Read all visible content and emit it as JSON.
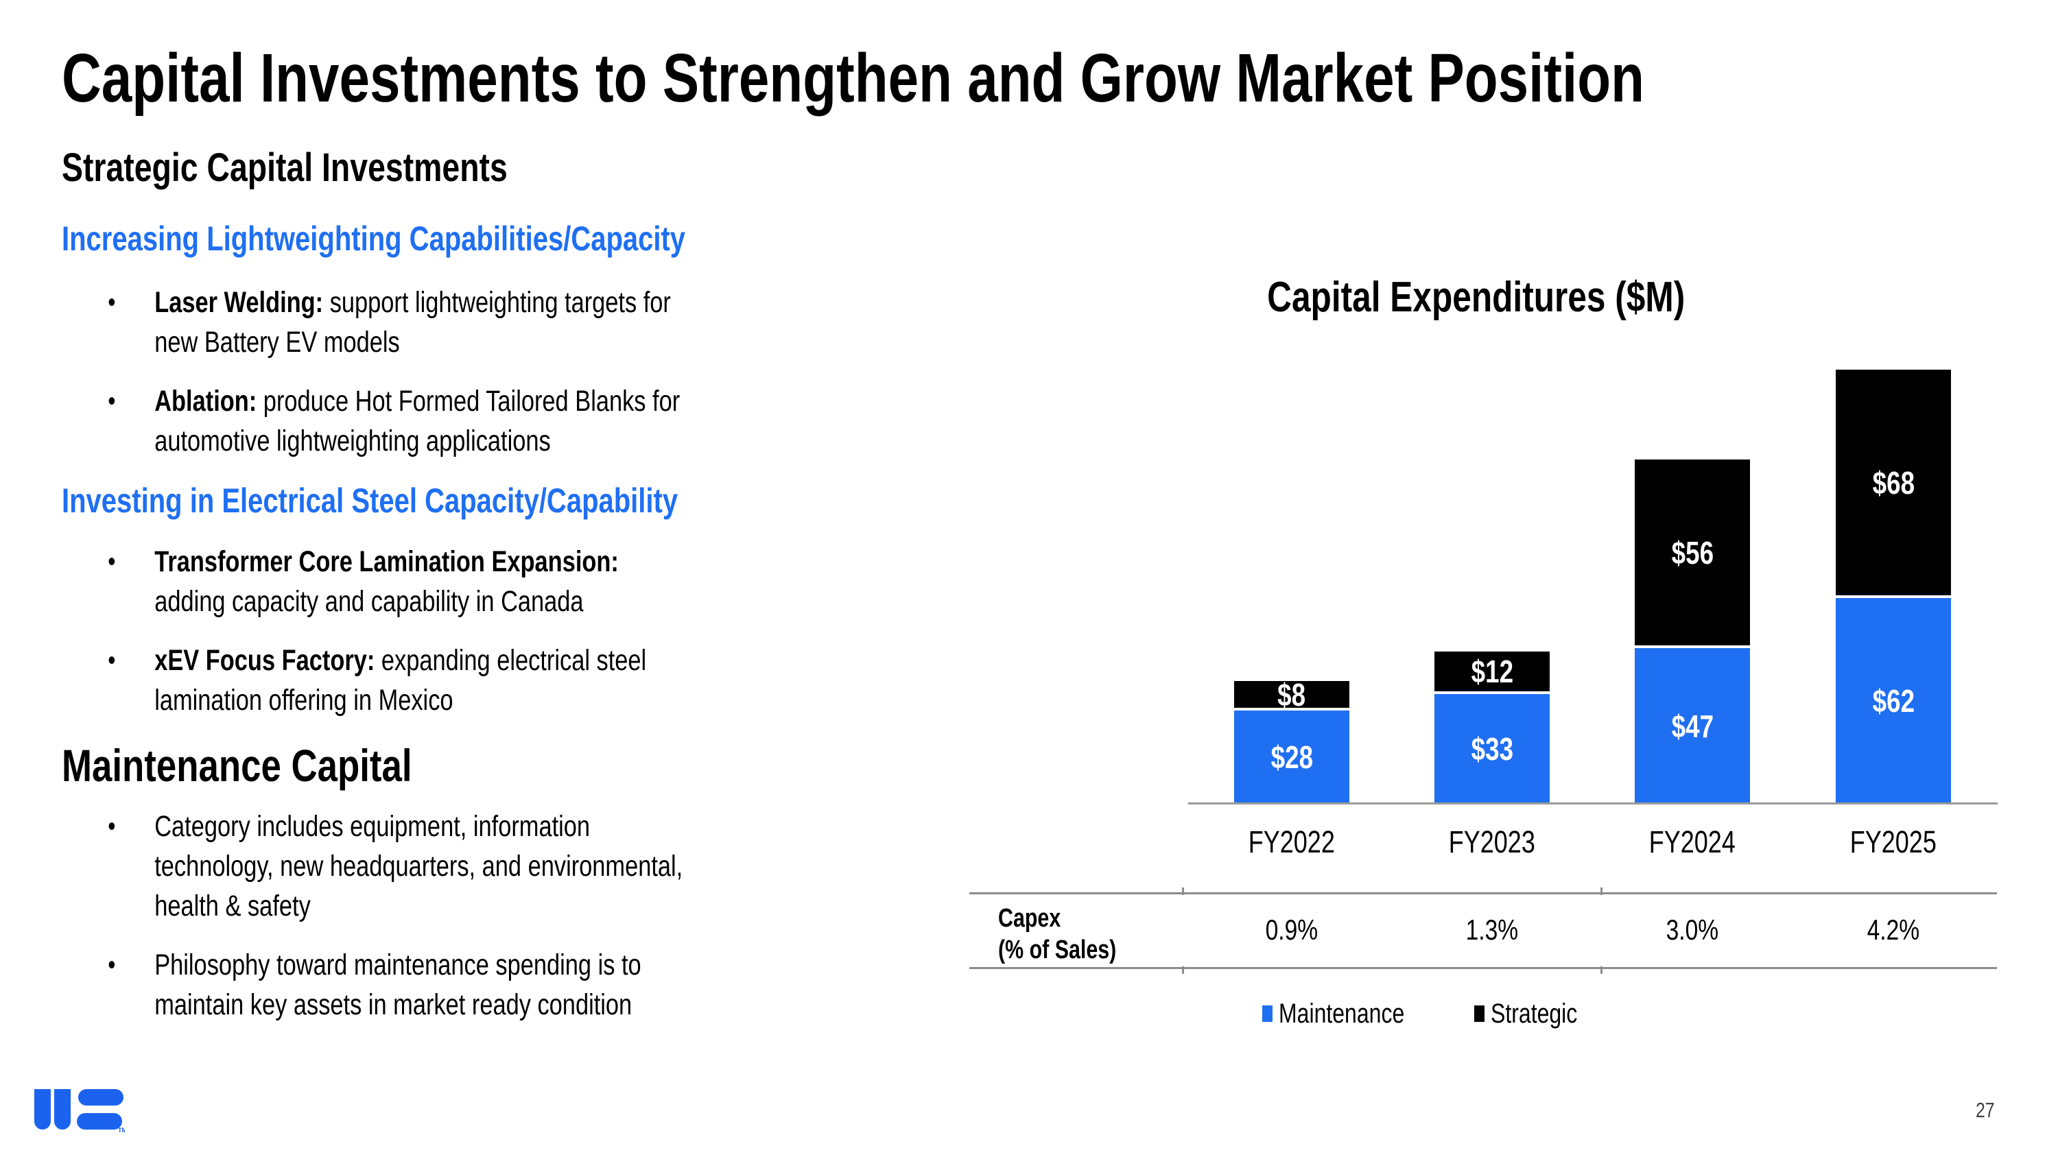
{
  "slide": {
    "title": "Capital Investments to Strengthen and Grow Market Position",
    "page_number": "27"
  },
  "left": {
    "section1_title": "Strategic Capital Investments",
    "sub1_title": "Increasing Lightweighting Capabilities/Capacity",
    "sub1_bullets": [
      {
        "bold": "Laser Welding:",
        "lines": [
          " support lightweighting targets for",
          "new Battery EV models"
        ]
      },
      {
        "bold": "Ablation:",
        "lines": [
          " produce Hot Formed Tailored Blanks for",
          "automotive lightweighting applications"
        ]
      }
    ],
    "sub2_title": "Investing in Electrical Steel Capacity/Capability",
    "sub2_bullets": [
      {
        "bold": "Transformer Core Lamination Expansion:",
        "lines": [
          "",
          "adding capacity and capability in Canada"
        ]
      },
      {
        "bold": "xEV Focus Factory:",
        "lines": [
          " expanding electrical steel",
          "lamination offering in Mexico"
        ]
      }
    ],
    "section2_title": "Maintenance Capital",
    "section2_bullets": [
      {
        "bold": "",
        "lines": [
          "Category includes equipment, information",
          "technology, new headquarters, and environmental,",
          "health & safety"
        ]
      },
      {
        "bold": "",
        "lines": [
          "Philosophy toward maintenance spending is to",
          "maintain key assets in market ready condition"
        ]
      }
    ]
  },
  "chart_data": {
    "type": "bar",
    "stacked": true,
    "title": "Capital Expenditures ($M)",
    "categories": [
      "FY2022",
      "FY2023",
      "FY2024",
      "FY2025"
    ],
    "series": [
      {
        "name": "Maintenance",
        "color": "#1f6ff2",
        "values": [
          28,
          33,
          47,
          62
        ],
        "labels": [
          "$28",
          "$33",
          "$47",
          "$62"
        ]
      },
      {
        "name": "Strategic",
        "color": "#000000",
        "values": [
          8,
          12,
          56,
          68
        ],
        "labels": [
          "$8",
          "$12",
          "$56",
          "$68"
        ]
      }
    ],
    "totals": [
      36,
      45,
      103,
      130
    ],
    "ylim": [
      0,
      140
    ],
    "grid": false,
    "legend_position": "bottom",
    "capex_row": {
      "label_line1": "Capex",
      "label_line2": "(% of Sales)",
      "values": [
        "0.9%",
        "1.3%",
        "3.0%",
        "4.2%"
      ]
    }
  },
  "colors": {
    "accent_blue": "#1f6ff2",
    "bar_black": "#000000",
    "axis_gray": "#9a9a9a",
    "table_line_gray": "#8c8c8c",
    "logo_blue": "#1b63ee",
    "page_number_gray": "#3f3f3f"
  },
  "logo": {
    "tm": "TM"
  }
}
